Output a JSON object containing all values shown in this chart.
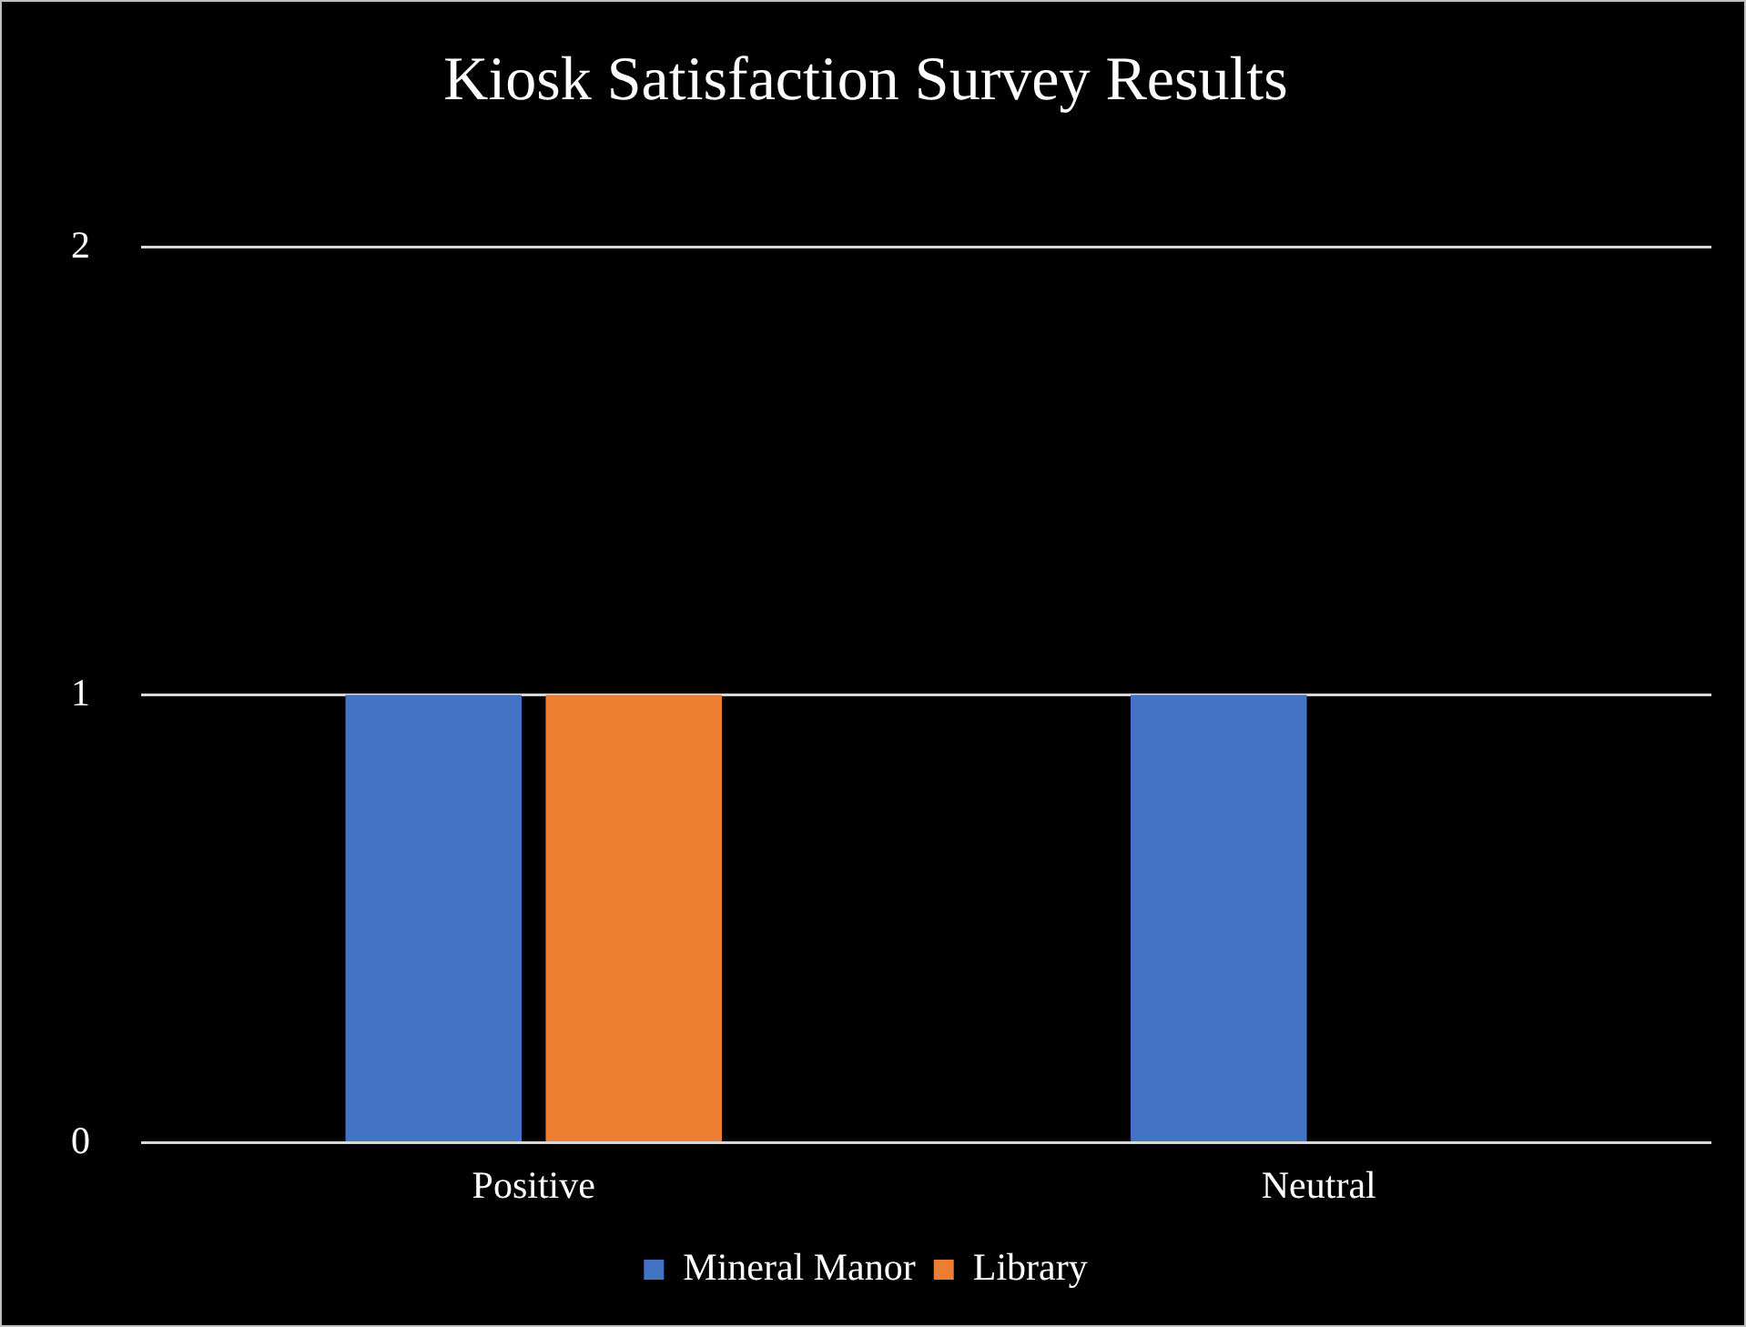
{
  "chart_data": {
    "type": "bar",
    "title": "Kiosk Satisfaction Survey Results",
    "categories": [
      "Positive",
      "Neutral"
    ],
    "series": [
      {
        "name": "Mineral Manor",
        "color": "#4472c4",
        "values": [
          1,
          1
        ]
      },
      {
        "name": "Library",
        "color": "#ed7d31",
        "values": [
          1,
          0
        ]
      }
    ],
    "ylim": [
      0,
      2
    ],
    "yticks": [
      0,
      1,
      2
    ],
    "grid": "y",
    "legend": "bottom"
  }
}
